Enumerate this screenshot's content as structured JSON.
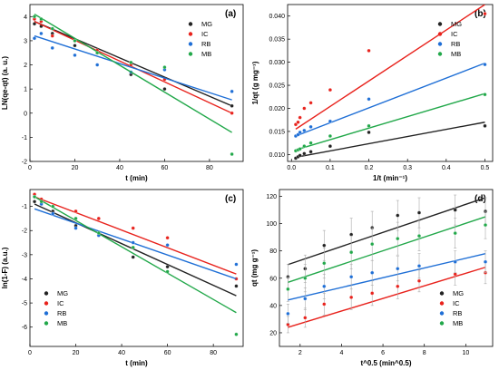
{
  "chart_data": [
    {
      "type": "scatter",
      "panel_label": "(a)",
      "xlabel": "t (min)",
      "ylabel": "LN(qe-qt) (a. u.)",
      "xlim": [
        0,
        95
      ],
      "ylim": [
        -2,
        4.5
      ],
      "xticks": [
        0,
        20,
        40,
        60,
        80
      ],
      "yticks": [
        -2,
        -1,
        0,
        1,
        2,
        3,
        4
      ],
      "xtick_labels": [
        "0",
        "20",
        "40",
        "60",
        "80"
      ],
      "ytick_labels": [
        "-2",
        "-1",
        "0",
        "1",
        "2",
        "3",
        "4"
      ],
      "legend": "top-right",
      "series": [
        {
          "name": "MG",
          "color": "#222222",
          "x": [
            2,
            5,
            10,
            20,
            30,
            45,
            60,
            90
          ],
          "y": [
            3.7,
            3.6,
            3.3,
            2.8,
            2.5,
            1.6,
            1.0,
            0.3
          ],
          "fit_x": [
            2,
            90
          ],
          "fit_y": [
            3.8,
            0.3
          ]
        },
        {
          "name": "IC",
          "color": "#e8221c",
          "x": [
            2,
            5,
            10,
            20,
            30,
            45,
            60,
            90
          ],
          "y": [
            3.9,
            3.8,
            3.2,
            3.0,
            2.6,
            2.0,
            1.4,
            0.0
          ],
          "fit_x": [
            2,
            90
          ],
          "fit_y": [
            3.8,
            0.0
          ]
        },
        {
          "name": "RB",
          "color": "#1f6fd6",
          "x": [
            2,
            5,
            10,
            20,
            30,
            45,
            60,
            90
          ],
          "y": [
            3.1,
            3.3,
            2.7,
            2.4,
            2.0,
            1.7,
            1.8,
            0.9
          ],
          "fit_x": [
            2,
            90
          ],
          "fit_y": [
            3.2,
            0.55
          ]
        },
        {
          "name": "MB",
          "color": "#22a84a",
          "x": [
            2,
            5,
            10,
            20,
            30,
            45,
            60,
            90
          ],
          "y": [
            4.0,
            3.9,
            3.5,
            3.0,
            2.5,
            2.1,
            1.9,
            -1.7
          ],
          "fit_x": [
            2,
            90
          ],
          "fit_y": [
            4.1,
            -0.8
          ]
        }
      ]
    },
    {
      "type": "scatter",
      "panel_label": "(b)",
      "xlabel": "1/t (min⁻¹)",
      "ylabel": "1/qt (g mg⁻¹)",
      "xlim": [
        -0.01,
        0.52
      ],
      "ylim": [
        0.0085,
        0.0425
      ],
      "xticks": [
        0.0,
        0.1,
        0.2,
        0.3,
        0.4,
        0.5
      ],
      "yticks": [
        0.01,
        0.015,
        0.02,
        0.025,
        0.03,
        0.035,
        0.04
      ],
      "xtick_labels": [
        "0.0",
        "0.1",
        "0.2",
        "0.3",
        "0.4",
        "0.5"
      ],
      "ytick_labels": [
        "0.010",
        "0.015",
        "0.020",
        "0.025",
        "0.030",
        "0.035",
        "0.040"
      ],
      "legend": "top-right",
      "series": [
        {
          "name": "MG",
          "color": "#222222",
          "x": [
            0.011,
            0.017,
            0.022,
            0.033,
            0.05,
            0.1,
            0.2,
            0.5
          ],
          "y": [
            0.0092,
            0.0095,
            0.0098,
            0.0102,
            0.0106,
            0.0118,
            0.0148,
            0.0162
          ],
          "fit_x": [
            0.011,
            0.5
          ],
          "fit_y": [
            0.0094,
            0.017
          ]
        },
        {
          "name": "IC",
          "color": "#e8221c",
          "x": [
            0.011,
            0.017,
            0.022,
            0.033,
            0.05,
            0.1,
            0.2,
            0.5
          ],
          "y": [
            0.0165,
            0.017,
            0.018,
            0.02,
            0.0212,
            0.024,
            0.0325,
            0.0405
          ],
          "fit_x": [
            0.011,
            0.5
          ],
          "fit_y": [
            0.0155,
            0.0425
          ]
        },
        {
          "name": "RB",
          "color": "#1f6fd6",
          "x": [
            0.011,
            0.017,
            0.022,
            0.033,
            0.05,
            0.1,
            0.2,
            0.5
          ],
          "y": [
            0.014,
            0.0143,
            0.0148,
            0.0152,
            0.016,
            0.0172,
            0.022,
            0.0295
          ],
          "fit_x": [
            0.011,
            0.5
          ],
          "fit_y": [
            0.014,
            0.0298
          ]
        },
        {
          "name": "MB",
          "color": "#22a84a",
          "x": [
            0.011,
            0.017,
            0.022,
            0.033,
            0.05,
            0.1,
            0.2,
            0.5
          ],
          "y": [
            0.0108,
            0.011,
            0.0112,
            0.0118,
            0.0125,
            0.014,
            0.0162,
            0.023
          ],
          "fit_x": [
            0.011,
            0.5
          ],
          "fit_y": [
            0.011,
            0.0232
          ]
        }
      ]
    },
    {
      "type": "scatter",
      "panel_label": "(c)",
      "xlabel": "t (min)",
      "ylabel": "ln(1-F) (a.u.)",
      "xlim": [
        0,
        93
      ],
      "ylim": [
        -6.8,
        -0.3
      ],
      "xticks": [
        0,
        20,
        40,
        60,
        80
      ],
      "yticks": [
        -6,
        -5,
        -4,
        -3,
        -2,
        -1
      ],
      "xtick_labels": [
        "0",
        "20",
        "40",
        "60",
        "80"
      ],
      "ytick_labels": [
        "-6",
        "-5",
        "-4",
        "-3",
        "-2",
        "-1"
      ],
      "legend": "bottom-left",
      "series": [
        {
          "name": "MG",
          "color": "#222222",
          "x": [
            2,
            5,
            10,
            20,
            30,
            45,
            60,
            90
          ],
          "y": [
            -0.8,
            -0.9,
            -1.2,
            -1.8,
            -2.2,
            -3.1,
            -3.5,
            -4.3
          ],
          "fit_x": [
            2,
            90
          ],
          "fit_y": [
            -0.9,
            -4.7
          ]
        },
        {
          "name": "IC",
          "color": "#e8221c",
          "x": [
            2,
            5,
            10,
            20,
            30,
            45,
            60,
            90
          ],
          "y": [
            -0.5,
            -0.7,
            -1.0,
            -1.2,
            -1.5,
            -1.9,
            -2.3,
            -4.0
          ],
          "fit_x": [
            2,
            90
          ],
          "fit_y": [
            -0.6,
            -3.8
          ]
        },
        {
          "name": "RB",
          "color": "#1f6fd6",
          "x": [
            2,
            5,
            10,
            20,
            30,
            45,
            60,
            90
          ],
          "y": [
            -0.6,
            -0.9,
            -1.3,
            -1.9,
            -2.2,
            -2.5,
            -2.6,
            -3.4
          ],
          "fit_x": [
            2,
            90
          ],
          "fit_y": [
            -1.1,
            -4.0
          ]
        },
        {
          "name": "MB",
          "color": "#22a84a",
          "x": [
            2,
            5,
            10,
            20,
            30,
            45,
            60,
            90
          ],
          "y": [
            -0.6,
            -0.8,
            -1.0,
            -1.5,
            -2.1,
            -2.7,
            -3.7,
            -6.3
          ],
          "fit_x": [
            2,
            90
          ],
          "fit_y": [
            -0.6,
            -5.4
          ]
        }
      ]
    },
    {
      "type": "scatter",
      "panel_label": "(d)",
      "xlabel": "t^0.5 (min^0.5)",
      "ylabel": "qt (mg g⁻¹)",
      "xlim": [
        1,
        11.3
      ],
      "ylim": [
        10,
        125
      ],
      "xticks": [
        2,
        4,
        6,
        8,
        10
      ],
      "yticks": [
        20,
        40,
        60,
        80,
        100,
        120
      ],
      "xtick_labels": [
        "2",
        "4",
        "6",
        "8",
        "10"
      ],
      "ytick_labels": [
        "20",
        "40",
        "60",
        "80",
        "100",
        "120"
      ],
      "legend": "bottom-right",
      "series": [
        {
          "name": "MG",
          "color": "#222222",
          "x": [
            1.41,
            2.24,
            3.16,
            4.47,
            5.48,
            6.71,
            7.75,
            9.49,
            10.95
          ],
          "y": [
            61,
            67,
            84,
            92,
            97,
            106,
            108,
            110,
            109
          ],
          "err": [
            9,
            10,
            11,
            12,
            12,
            11,
            11,
            11,
            10
          ],
          "fit_x": [
            1.41,
            10.95
          ],
          "fit_y": [
            70,
            119
          ]
        },
        {
          "name": "IC",
          "color": "#e8221c",
          "x": [
            1.41,
            2.24,
            3.16,
            4.47,
            5.48,
            6.71,
            7.75,
            9.49,
            10.95
          ],
          "y": [
            26,
            31,
            41,
            46,
            49,
            54,
            58,
            63,
            64
          ],
          "err": [
            6,
            7,
            8,
            9,
            9,
            9,
            8,
            8,
            8
          ],
          "fit_x": [
            1.41,
            10.95
          ],
          "fit_y": [
            24,
            68
          ]
        },
        {
          "name": "RB",
          "color": "#1f6fd6",
          "x": [
            1.41,
            2.24,
            3.16,
            4.47,
            5.48,
            6.71,
            7.75,
            9.49,
            10.95
          ],
          "y": [
            34,
            45,
            54,
            61,
            64,
            67,
            69,
            72,
            72
          ],
          "err": [
            7,
            8,
            9,
            9,
            9,
            9,
            9,
            8,
            8
          ],
          "fit_x": [
            1.41,
            10.95
          ],
          "fit_y": [
            44,
            78
          ]
        },
        {
          "name": "MB",
          "color": "#22a84a",
          "x": [
            1.41,
            2.24,
            3.16,
            4.47,
            5.48,
            6.71,
            7.75,
            9.49,
            10.95
          ],
          "y": [
            52,
            60,
            71,
            79,
            85,
            89,
            91,
            93,
            99
          ],
          "err": [
            9,
            10,
            11,
            12,
            12,
            12,
            11,
            11,
            10
          ],
          "fit_x": [
            1.41,
            10.95
          ],
          "fit_y": [
            57,
            105
          ]
        }
      ]
    }
  ]
}
